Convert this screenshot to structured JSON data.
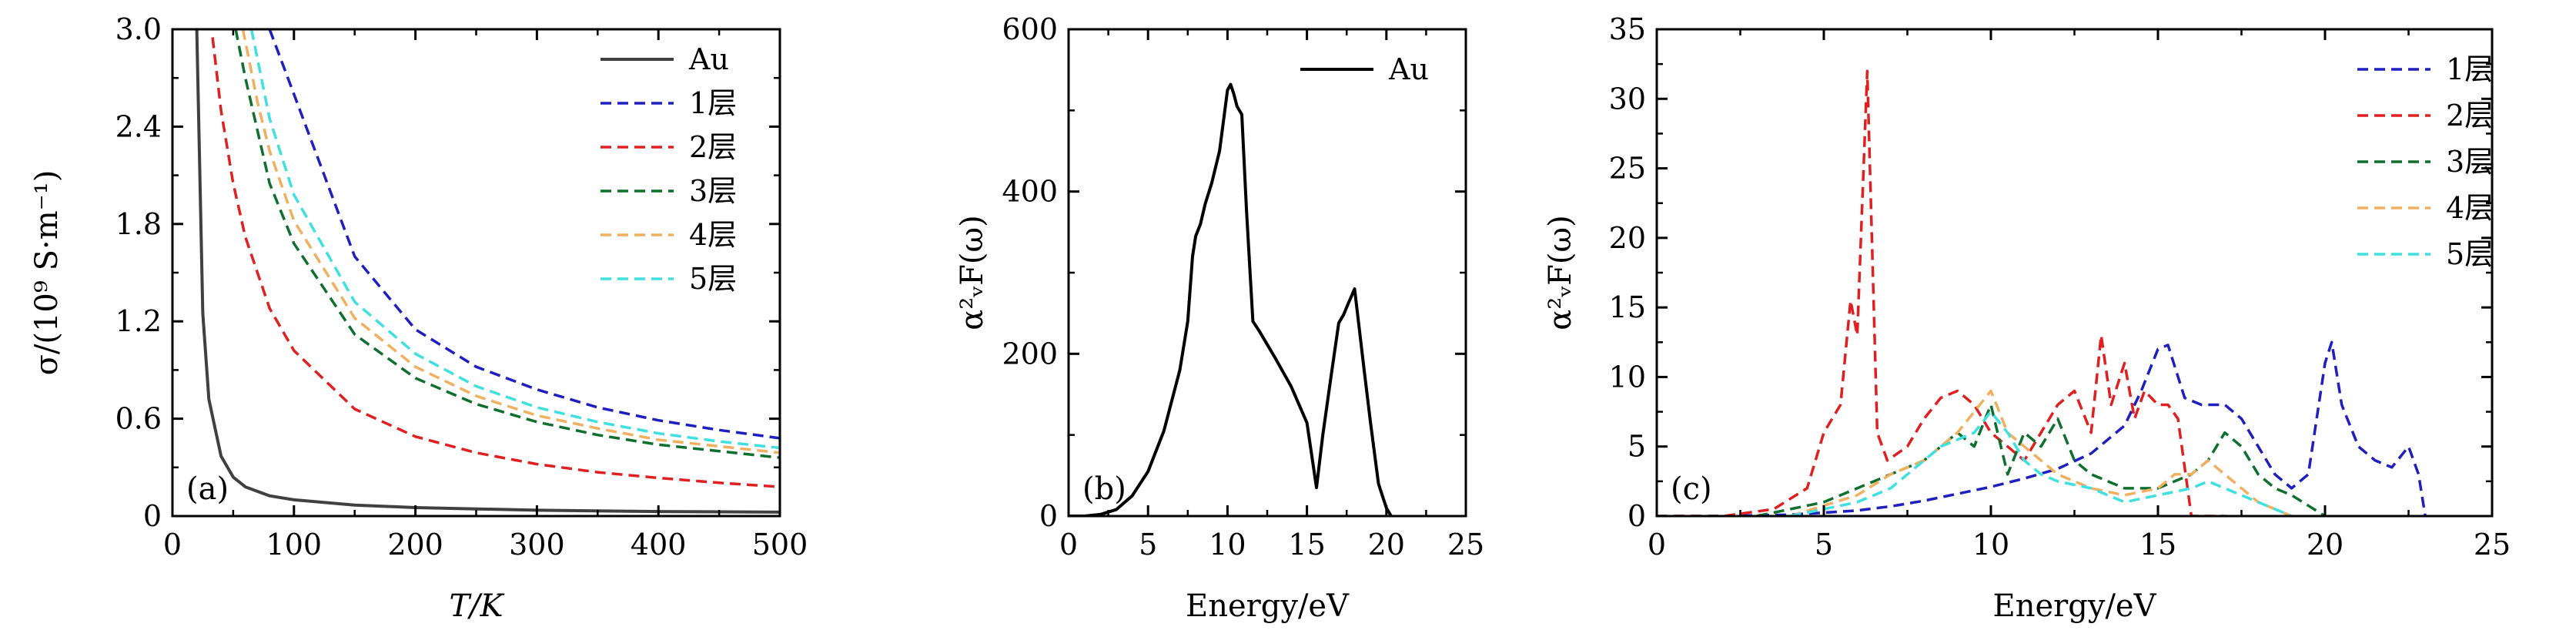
{
  "colors": {
    "Au_a": "#404040",
    "Au_b": "#000000",
    "layer1": "#1f1fbf",
    "layer2": "#e02020",
    "layer3": "#0f6f2f",
    "layer4": "#f0b060",
    "layer5": "#40e0e0"
  },
  "chart_data": [
    {
      "type": "line",
      "panel_label": "(a)",
      "xlabel": "T/K",
      "ylabel": "σ/(10⁹ S·m⁻¹)",
      "xlim": [
        0,
        500
      ],
      "ylim": [
        0,
        3.0
      ],
      "xticks": [
        0,
        100,
        200,
        300,
        400,
        500
      ],
      "yticks": [
        0,
        0.6,
        1.2,
        1.8,
        2.4,
        3.0
      ],
      "ytick_labels": [
        "0",
        "0.6",
        "1.2",
        "1.8",
        "2.4",
        "3.0"
      ],
      "legend_position": "top-right",
      "series": [
        {
          "name": "Au",
          "style": "solid",
          "color_key": "Au_a",
          "x": [
            20,
            25,
            30,
            40,
            50,
            60,
            80,
            100,
            150,
            200,
            300,
            400,
            500
          ],
          "y": [
            3.0,
            1.25,
            0.72,
            0.37,
            0.24,
            0.18,
            0.125,
            0.1,
            0.068,
            0.052,
            0.036,
            0.028,
            0.024
          ]
        },
        {
          "name": "1层",
          "style": "dashed",
          "color_key": "layer1",
          "x": [
            80,
            100,
            150,
            200,
            250,
            300,
            350,
            400,
            450,
            500
          ],
          "y": [
            3.0,
            2.6,
            1.6,
            1.15,
            0.92,
            0.78,
            0.67,
            0.59,
            0.53,
            0.48
          ]
        },
        {
          "name": "2层",
          "style": "dashed",
          "color_key": "layer2",
          "x": [
            33,
            40,
            50,
            60,
            80,
            100,
            150,
            200,
            250,
            300,
            350,
            400,
            450,
            500
          ],
          "y": [
            2.95,
            2.5,
            2.05,
            1.72,
            1.28,
            1.02,
            0.66,
            0.49,
            0.39,
            0.32,
            0.27,
            0.235,
            0.205,
            0.18
          ]
        },
        {
          "name": "3层",
          "style": "dashed",
          "color_key": "layer3",
          "x": [
            52,
            60,
            80,
            100,
            150,
            200,
            250,
            300,
            350,
            400,
            450,
            500
          ],
          "y": [
            3.0,
            2.7,
            2.05,
            1.68,
            1.12,
            0.85,
            0.69,
            0.58,
            0.5,
            0.44,
            0.4,
            0.36
          ]
        },
        {
          "name": "4层",
          "style": "dashed",
          "color_key": "layer4",
          "x": [
            58,
            70,
            80,
            100,
            150,
            200,
            250,
            300,
            350,
            400,
            450,
            500
          ],
          "y": [
            3.0,
            2.55,
            2.25,
            1.82,
            1.22,
            0.92,
            0.74,
            0.62,
            0.54,
            0.47,
            0.43,
            0.39
          ]
        },
        {
          "name": "5层",
          "style": "dashed",
          "color_key": "layer5",
          "x": [
            65,
            80,
            100,
            150,
            200,
            250,
            300,
            350,
            400,
            450,
            500
          ],
          "y": [
            3.0,
            2.45,
            1.98,
            1.32,
            1.0,
            0.8,
            0.67,
            0.58,
            0.51,
            0.46,
            0.42
          ]
        }
      ]
    },
    {
      "type": "line",
      "panel_label": "(b)",
      "xlabel": "Energy/eV",
      "ylabel": "α²ᵥF(ω)",
      "xlim": [
        0,
        25
      ],
      "ylim": [
        0,
        600
      ],
      "xticks": [
        0,
        5,
        10,
        15,
        20,
        25
      ],
      "yticks": [
        0,
        200,
        400,
        600
      ],
      "ytick_labels": [
        "0",
        "200",
        "400",
        "600"
      ],
      "legend_position": "top-right",
      "series": [
        {
          "name": "Au",
          "style": "solid",
          "color_key": "Au_b",
          "x": [
            0,
            1,
            2,
            3,
            4,
            5,
            6,
            7,
            7.5,
            7.8,
            8.0,
            8.3,
            8.6,
            9.0,
            9.5,
            10.0,
            10.2,
            10.4,
            10.6,
            10.9,
            11.2,
            11.6,
            12.0,
            13.0,
            14.0,
            15.0,
            15.6,
            16.0,
            16.5,
            17.0,
            17.3,
            17.6,
            18.0,
            18.3,
            18.6,
            19.0,
            19.5,
            20.0,
            20.3
          ],
          "y": [
            0,
            0,
            2,
            8,
            25,
            55,
            105,
            180,
            240,
            320,
            345,
            360,
            385,
            410,
            450,
            525,
            532,
            520,
            505,
            495,
            375,
            240,
            228,
            195,
            160,
            115,
            35,
            100,
            170,
            238,
            248,
            262,
            280,
            230,
            180,
            115,
            40,
            10,
            0
          ]
        }
      ]
    },
    {
      "type": "line",
      "panel_label": "(c)",
      "xlabel": "Energy/eV",
      "ylabel": "α²ᵥF(ω)",
      "xlim": [
        0,
        25
      ],
      "ylim": [
        0,
        35
      ],
      "xticks": [
        0,
        5,
        10,
        15,
        20,
        25
      ],
      "yticks": [
        0,
        5,
        10,
        15,
        20,
        25,
        30,
        35
      ],
      "ytick_labels": [
        "0",
        "5",
        "10",
        "15",
        "20",
        "25",
        "30",
        "35"
      ],
      "legend_position": "top-right",
      "series": [
        {
          "name": "1层",
          "style": "dashed",
          "color_key": "layer1",
          "x": [
            0,
            2,
            4,
            6,
            7,
            8,
            9,
            10,
            11,
            12,
            13,
            14,
            14.5,
            15,
            15.3,
            15.8,
            16.3,
            17,
            17.5,
            18,
            18.5,
            19,
            19.5,
            20,
            20.2,
            20.5,
            21,
            21.5,
            22,
            22.5,
            22.8,
            23
          ],
          "y": [
            0,
            0,
            0.1,
            0.4,
            0.7,
            1.1,
            1.6,
            2.1,
            2.7,
            3.4,
            4.5,
            6.5,
            9,
            12,
            12.3,
            8.5,
            8,
            8,
            7,
            5,
            3,
            2,
            3,
            11,
            12.5,
            8,
            5,
            4,
            3.5,
            5,
            3,
            0
          ]
        },
        {
          "name": "2层",
          "style": "dashed",
          "color_key": "layer2",
          "x": [
            0,
            2,
            3.5,
            4.5,
            5,
            5.5,
            5.8,
            6.0,
            6.3,
            6.6,
            6.9,
            7.5,
            8,
            8.5,
            9,
            9.5,
            10,
            10.5,
            11,
            11.5,
            12,
            12.5,
            13,
            13.3,
            13.6,
            14,
            14.3,
            14.6,
            15,
            15.3,
            15.6,
            16,
            16.5,
            17
          ],
          "y": [
            0,
            0,
            0.5,
            2,
            6,
            8,
            15.5,
            13,
            32,
            6,
            4,
            5,
            7,
            8.5,
            9,
            8,
            6,
            5,
            4,
            6,
            8,
            9,
            6,
            13,
            8,
            11,
            7,
            9,
            8,
            8,
            7,
            0,
            0,
            0
          ]
        },
        {
          "name": "3层",
          "style": "dashed",
          "color_key": "layer3",
          "x": [
            3,
            5,
            6,
            7,
            8,
            8.5,
            9,
            9.5,
            10,
            10.5,
            11,
            11.5,
            12,
            12.5,
            13,
            14,
            15,
            16,
            16.5,
            17,
            17.5,
            18,
            18.5,
            19,
            20
          ],
          "y": [
            0,
            1,
            2,
            3,
            4,
            5,
            6,
            5,
            8,
            3,
            6,
            5,
            7,
            4,
            3,
            2,
            2,
            3,
            4,
            6,
            5,
            3,
            2,
            1.5,
            0
          ]
        },
        {
          "name": "4层",
          "style": "dashed",
          "color_key": "layer4",
          "x": [
            4,
            6,
            7,
            8,
            8.5,
            9,
            9.5,
            10,
            10.5,
            11,
            11.5,
            12,
            13,
            14,
            15,
            15.5,
            16,
            16.5,
            17,
            17.5,
            18,
            19
          ],
          "y": [
            0,
            1.5,
            3,
            4,
            5,
            6,
            7.5,
            9,
            6,
            5,
            4,
            3,
            2,
            1.5,
            2,
            3,
            3,
            4,
            3,
            2,
            1,
            0
          ]
        },
        {
          "name": "5层",
          "style": "dashed",
          "color_key": "layer5",
          "x": [
            4,
            6,
            7,
            8,
            8.5,
            9,
            9.5,
            10,
            10.5,
            11,
            11.5,
            12,
            13,
            14,
            15,
            16,
            16.5,
            17,
            17.5,
            18,
            19
          ],
          "y": [
            0,
            1,
            2,
            4,
            5,
            5.5,
            6,
            7.5,
            6,
            4,
            3,
            2.5,
            2,
            1,
            1.5,
            2,
            2.5,
            2,
            1.5,
            1,
            0
          ]
        }
      ]
    }
  ]
}
